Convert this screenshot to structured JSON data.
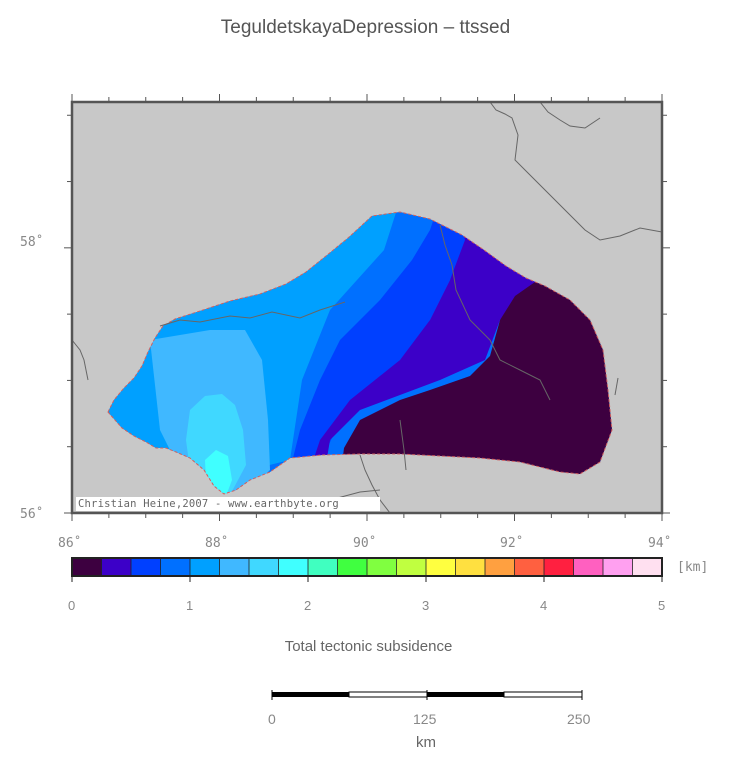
{
  "map": {
    "title": "TeguldetskayaDepression – ttssed",
    "credit": "Christian Heine,2007 - www.earthbyte.org",
    "lon_ticks": [
      {
        "value": 86,
        "label": "86˚"
      },
      {
        "value": 88,
        "label": "88˚"
      },
      {
        "value": 90,
        "label": "90˚"
      },
      {
        "value": 92,
        "label": "92˚"
      },
      {
        "value": 94,
        "label": "94˚"
      }
    ],
    "lat_ticks": [
      {
        "value": 58,
        "label": "58˚"
      },
      {
        "value": 56,
        "label": "56˚"
      }
    ],
    "extent": {
      "lon_min": 86,
      "lon_max": 94,
      "lat_min": 56,
      "lat_max": 59.1
    },
    "land_color": "#c8c8c8",
    "frame_color": "#555555"
  },
  "colorbar": {
    "unit": "[km]",
    "labels": [
      "0",
      "1",
      "2",
      "3",
      "4",
      "5"
    ],
    "range": [
      0,
      5
    ],
    "title": "Total tectonic subsidence",
    "colors": [
      "#3d0040",
      "#3c00c8",
      "#0040ff",
      "#0070ff",
      "#00a0ff",
      "#40b8ff",
      "#40d8ff",
      "#40ffff",
      "#40ffc0",
      "#40ff40",
      "#80ff40",
      "#c0ff40",
      "#ffff40",
      "#ffe040",
      "#ffa040",
      "#ff6040",
      "#ff2040",
      "#ff60c0",
      "#ffa0f0",
      "#ffe0f0"
    ]
  },
  "scalebar": {
    "labels": [
      "0",
      "125",
      "250"
    ],
    "unit": "km"
  }
}
